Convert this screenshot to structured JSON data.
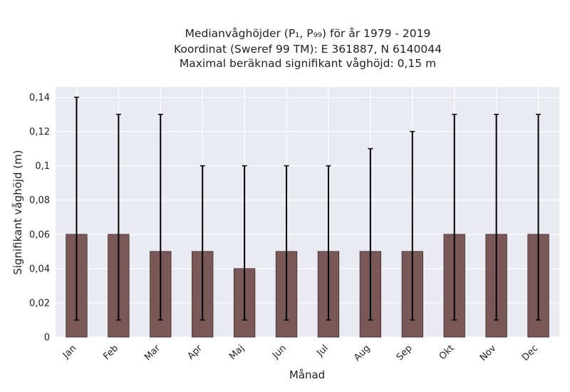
{
  "chart_data": {
    "type": "bar",
    "title_lines": [
      "Medianvåghöjder (P₁, P₉₉) för år 1979 - 2019",
      "Koordinat (Sweref 99 TM): E 361887, N 6140044",
      "Maximal beräknad signifikant våghöjd: 0,15 m"
    ],
    "xlabel": "Månad",
    "ylabel": "Signifikant våghöjd (m)",
    "categories": [
      "Jan",
      "Feb",
      "Mar",
      "Apr",
      "Maj",
      "Jun",
      "Jul",
      "Aug",
      "Sep",
      "Okt",
      "Nov",
      "Dec"
    ],
    "values": [
      0.06,
      0.06,
      0.05,
      0.05,
      0.04,
      0.05,
      0.05,
      0.05,
      0.05,
      0.06,
      0.06,
      0.06
    ],
    "error_low": [
      0.01,
      0.01,
      0.01,
      0.01,
      0.01,
      0.01,
      0.01,
      0.01,
      0.01,
      0.01,
      0.01,
      0.01
    ],
    "error_high": [
      0.14,
      0.13,
      0.13,
      0.1,
      0.1,
      0.1,
      0.1,
      0.11,
      0.12,
      0.13,
      0.13,
      0.13
    ],
    "ylim": [
      0,
      0.146
    ],
    "yticks": [
      0,
      0.02,
      0.04,
      0.06,
      0.08,
      0.1,
      0.12,
      0.14
    ],
    "ytick_labels": [
      "0",
      "0,02",
      "0,04",
      "0,06",
      "0,08",
      "0,1",
      "0,12",
      "0,14"
    ],
    "grid": true,
    "colors": {
      "bar": "#7a5858",
      "bar_edge": "#3a2a2a",
      "plot_background": "#eaeaf2",
      "grid": "#ffffff",
      "error_bar": "#000000"
    }
  }
}
